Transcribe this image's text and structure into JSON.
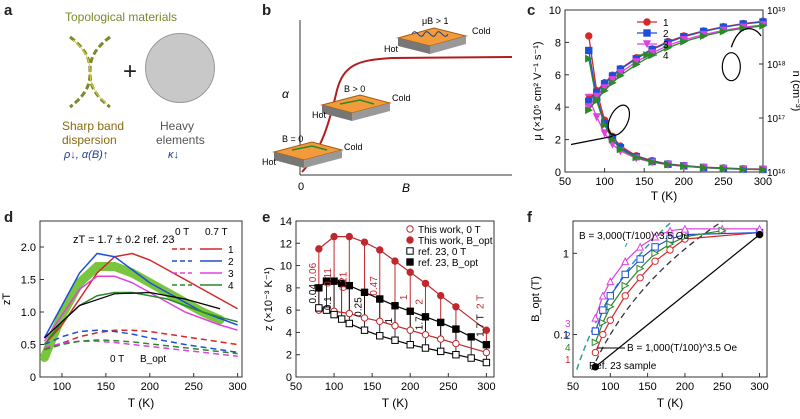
{
  "panel_labels": [
    "a",
    "b",
    "c",
    "d",
    "e",
    "f"
  ],
  "panel_a": {
    "title": "Topological materials",
    "plus": "+",
    "left_caption": [
      "Sharp band",
      "dispersion"
    ],
    "left_formula": "ρ↓, α(B)↑",
    "right_caption": [
      "Heavy",
      "elements"
    ],
    "right_formula": "κ↓",
    "colors": {
      "topological": "#7a8a2a",
      "formula": "#1f3f8a",
      "sphere": "#c8c8c8"
    }
  },
  "panel_b": {
    "ylabel": "α",
    "xlabel": "B",
    "xtick": "0",
    "slabs": [
      {
        "hot": "Hot",
        "cold": "Cold",
        "field": "B = 0"
      },
      {
        "hot": "Hot",
        "cold": "Cold",
        "field": "B > 0"
      },
      {
        "hot": "Hot",
        "cold": "Cold",
        "field": "μB > 1"
      }
    ]
  },
  "chart_data": [
    {
      "panel": "c",
      "type": "line",
      "xlabel": "T (K)",
      "ylabel": "μ (×10⁵ cm² V⁻¹ s⁻¹)",
      "y2label": "n (cm⁻³)",
      "xlim": [
        50,
        300
      ],
      "ylim": [
        0,
        10
      ],
      "y2log": true,
      "y2lim": [
        1e+16,
        1e+19
      ],
      "xticks": [
        "50",
        "100",
        "150",
        "200",
        "250",
        "300"
      ],
      "yticks": [
        "0",
        "2",
        "4",
        "6",
        "8",
        "10"
      ],
      "y2ticks": [
        "10¹⁶",
        "10¹⁷",
        "10¹⁸",
        "10¹⁹"
      ],
      "x": [
        80,
        90,
        100,
        110,
        120,
        140,
        160,
        180,
        200,
        225,
        250,
        275,
        300
      ],
      "series_mu": [
        {
          "name": "1",
          "color": "#d62728",
          "marker": "circle",
          "values": [
            8.4,
            5.0,
            3.2,
            2.2,
            1.6,
            1.0,
            0.7,
            0.5,
            0.4,
            0.3,
            0.25,
            0.2,
            0.18
          ]
        },
        {
          "name": "2",
          "color": "#1f4fd6",
          "marker": "square",
          "values": [
            7.5,
            4.6,
            3.0,
            2.1,
            1.5,
            0.95,
            0.65,
            0.48,
            0.38,
            0.28,
            0.22,
            0.18,
            0.16
          ]
        },
        {
          "name": "3",
          "color": "#e040e0",
          "marker": "triangle-down",
          "values": [
            4.6,
            3.4,
            2.4,
            1.7,
            1.3,
            0.85,
            0.6,
            0.45,
            0.35,
            0.26,
            0.2,
            0.17,
            0.15
          ]
        },
        {
          "name": "4",
          "color": "#2a8a2a",
          "marker": "triangle-right",
          "values": [
            7.0,
            4.4,
            2.9,
            2.0,
            1.4,
            0.9,
            0.62,
            0.46,
            0.36,
            0.27,
            0.21,
            0.17,
            0.15
          ]
        }
      ],
      "series_n": [
        {
          "name": "1",
          "color": "#d62728",
          "marker": "circle",
          "values": [
            2.2e+17,
            3.2e+17,
            4.5e+17,
            6.2e+17,
            8.2e+17,
            1.3e+18,
            1.9e+18,
            2.6e+18,
            3.3e+18,
            4.1e+18,
            4.9e+18,
            5.6e+18,
            6.2e+18
          ]
        },
        {
          "name": "2",
          "color": "#1f4fd6",
          "marker": "square",
          "values": [
            2e+17,
            3e+17,
            4.3e+17,
            6e+17,
            8e+17,
            1.25e+18,
            1.85e+18,
            2.5e+18,
            3.2e+18,
            4e+18,
            4.8e+18,
            5.5e+18,
            6e+18
          ]
        },
        {
          "name": "3",
          "color": "#e040e0",
          "marker": "triangle-down",
          "values": [
            1.6e+17,
            2.5e+17,
            3.6e+17,
            5.1e+17,
            6.9e+17,
            1.1e+18,
            1.6e+18,
            2.2e+18,
            2.8e+18,
            3.5e+18,
            4.2e+18,
            4.8e+18,
            5.3e+18
          ]
        },
        {
          "name": "4",
          "color": "#2a8a2a",
          "marker": "triangle-right",
          "values": [
            1.4e+17,
            2.2e+17,
            3.2e+17,
            4.5e+17,
            6.1e+17,
            9.8e+17,
            1.45e+18,
            2e+18,
            2.6e+18,
            3.3e+18,
            4e+18,
            4.6e+18,
            5.1e+18
          ]
        }
      ],
      "legend": "top-center"
    },
    {
      "panel": "d",
      "type": "line",
      "xlabel": "T (K)",
      "ylabel": "zT",
      "xlim": [
        75,
        305
      ],
      "ylim": [
        0,
        2.4
      ],
      "xticks": [
        "100",
        "150",
        "200",
        "250",
        "300"
      ],
      "yticks": [
        "0",
        "0.5",
        "1.0",
        "1.5",
        "2.0"
      ],
      "annotation": "zT = 1.7 ± 0.2 ref. 23",
      "legend_header": [
        "0 T",
        "0.7 T"
      ],
      "legend_bottom": [
        "0 T",
        "B_opt"
      ],
      "x": [
        80,
        100,
        120,
        140,
        160,
        180,
        200,
        220,
        240,
        260,
        280,
        300
      ],
      "series": [
        {
          "name": "1",
          "color": "#d62728",
          "zero": [
            0.42,
            0.52,
            0.62,
            0.68,
            0.72,
            0.72,
            0.7,
            0.66,
            0.62,
            0.58,
            0.54,
            0.5
          ],
          "field": [
            0.5,
            0.8,
            1.2,
            1.6,
            1.85,
            1.9,
            1.8,
            1.65,
            1.5,
            1.35,
            1.2,
            1.05
          ]
        },
        {
          "name": "2",
          "color": "#1f4fd6",
          "zero": [
            0.5,
            0.62,
            0.7,
            0.72,
            0.7,
            0.66,
            0.6,
            0.55,
            0.5,
            0.46,
            0.42,
            0.38
          ],
          "field": [
            0.6,
            1.1,
            1.6,
            1.9,
            1.85,
            1.65,
            1.45,
            1.3,
            1.15,
            1.0,
            0.9,
            0.8
          ]
        },
        {
          "name": "3",
          "color": "#e040e0",
          "zero": [
            0.45,
            0.52,
            0.55,
            0.55,
            0.53,
            0.5,
            0.47,
            0.44,
            0.41,
            0.38,
            0.35,
            0.32
          ],
          "field": [
            0.55,
            0.95,
            1.35,
            1.55,
            1.55,
            1.45,
            1.3,
            1.15,
            1.0,
            0.9,
            0.8,
            0.72
          ]
        },
        {
          "name": "4",
          "color": "#2a8a2a",
          "zero": [
            0.42,
            0.5,
            0.55,
            0.57,
            0.56,
            0.54,
            0.51,
            0.48,
            0.45,
            0.42,
            0.39,
            0.36
          ],
          "field": [
            0.5,
            0.85,
            1.1,
            1.25,
            1.3,
            1.3,
            1.25,
            1.2,
            1.1,
            1.0,
            0.92,
            0.85
          ]
        }
      ],
      "ref_band": {
        "color": "#6abf2a",
        "values": [
          0.3,
          0.95,
          1.45,
          1.7,
          1.7,
          1.6,
          1.45,
          1.3,
          1.15,
          1.0,
          0.88
        ]
      },
      "ref_x": [
        80,
        100,
        120,
        140,
        160,
        180,
        200,
        220,
        240,
        260,
        280
      ]
    },
    {
      "panel": "e",
      "type": "line",
      "xlabel": "T (K)",
      "ylabel": "z (×10⁻³ K⁻¹)",
      "xlim": [
        50,
        310
      ],
      "ylim": [
        0,
        14
      ],
      "xticks": [
        "50",
        "100",
        "150",
        "200",
        "250",
        "300"
      ],
      "yticks": [
        "0",
        "2",
        "4",
        "6",
        "8",
        "10",
        "12",
        "14"
      ],
      "legend": [
        "This work, 0 T",
        "This work, B_opt",
        "ref. 23, 0 T",
        "ref. 23, B_opt"
      ],
      "this_work_zero": {
        "x": [
          80,
          100,
          120,
          140,
          160,
          180,
          200,
          220,
          240,
          260,
          300
        ],
        "values": [
          6.0,
          5.9,
          5.7,
          5.3,
          5.0,
          4.6,
          4.2,
          3.8,
          3.4,
          3.0,
          2.2
        ]
      },
      "this_work_bopt": {
        "x": [
          80,
          100,
          120,
          140,
          160,
          180,
          200,
          220,
          240,
          260,
          300
        ],
        "values": [
          11.5,
          12.6,
          12.6,
          12.1,
          11.4,
          10.4,
          9.4,
          8.4,
          7.3,
          6.3,
          4.2
        ]
      },
      "ref_zero": {
        "x": [
          80,
          90,
          100,
          110,
          120,
          140,
          160,
          180,
          200,
          220,
          240,
          260,
          280,
          300
        ],
        "values": [
          6.2,
          6.0,
          5.6,
          5.2,
          4.8,
          4.2,
          3.7,
          3.3,
          2.9,
          2.6,
          2.3,
          2.0,
          1.7,
          1.3
        ]
      },
      "ref_bopt": {
        "x": [
          80,
          90,
          100,
          110,
          120,
          140,
          160,
          180,
          200,
          220,
          240,
          260,
          280,
          300
        ],
        "values": [
          8.0,
          8.6,
          8.6,
          8.4,
          8.2,
          7.6,
          7.0,
          6.4,
          5.9,
          5.4,
          4.9,
          4.3,
          3.6,
          2.9
        ]
      },
      "field_labels_red": [
        "0.06",
        "0.11",
        "0.21",
        "0.47",
        "1",
        "2",
        "2 T"
      ],
      "field_labels_black": [
        "0.04",
        "0.1",
        "0.25",
        "1",
        "1.7",
        "1.7 T"
      ]
    },
    {
      "panel": "f",
      "type": "scatter",
      "xlabel": "T (K)",
      "ylabel": "B_opt (T)",
      "ylog": true,
      "xlim": [
        50,
        310
      ],
      "ylim": [
        0.03,
        2.5
      ],
      "xticks": [
        "50",
        "100",
        "150",
        "200",
        "250",
        "300"
      ],
      "yticks": [
        "0.1",
        "1"
      ],
      "annotations": [
        "B = 3,000(T/100)^3.5 Oe",
        "B = 1,000(T/100)^3.5 Oe",
        "Ref. 23 sample"
      ],
      "series": [
        {
          "name": "1",
          "color": "#d62728",
          "marker": "circle-open",
          "x": [
            80,
            90,
            100,
            120,
            140,
            160,
            180,
            200,
            300
          ],
          "values": [
            0.06,
            0.1,
            0.15,
            0.3,
            0.5,
            0.8,
            1.1,
            1.5,
            1.8
          ]
        },
        {
          "name": "2",
          "color": "#1f4fd6",
          "marker": "square-open",
          "x": [
            80,
            90,
            100,
            120,
            140,
            160,
            180,
            200,
            300
          ],
          "values": [
            0.11,
            0.2,
            0.3,
            0.55,
            0.85,
            1.2,
            1.5,
            1.7,
            1.8
          ]
        },
        {
          "name": "3",
          "color": "#e040e0",
          "marker": "triangle-open",
          "x": [
            80,
            90,
            100,
            120,
            140,
            160,
            180,
            200,
            250,
            300
          ],
          "values": [
            0.16,
            0.3,
            0.45,
            0.8,
            1.2,
            1.6,
            1.9,
            2.0,
            2.0,
            2.0
          ]
        },
        {
          "name": "4",
          "color": "#2a8a2a",
          "marker": "triangle-right-open",
          "x": [
            80,
            90,
            100,
            120,
            140,
            160,
            180,
            200,
            250
          ],
          "values": [
            0.08,
            0.14,
            0.22,
            0.4,
            0.65,
            1.0,
            1.3,
            1.6,
            1.9
          ]
        },
        {
          "name": "Ref. 23 sample",
          "color": "#000000",
          "marker": "circle-filled",
          "x": [
            80,
            300
          ],
          "values": [
            0.04,
            1.7
          ]
        }
      ],
      "curve_3000": {
        "color": "#2aa0a0"
      },
      "curve_1000": {
        "color": "#333333"
      }
    }
  ]
}
